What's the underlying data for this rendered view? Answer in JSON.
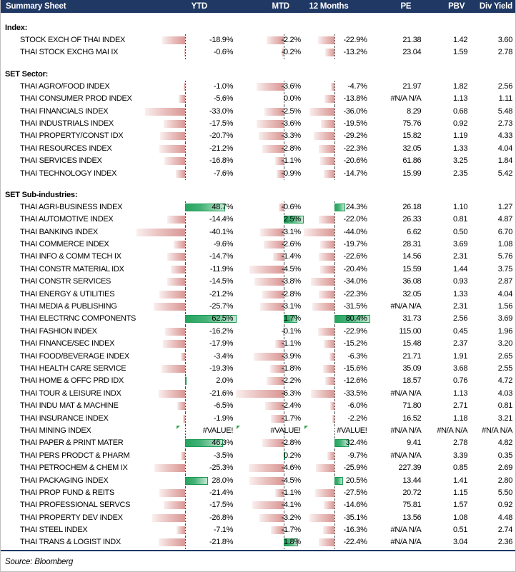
{
  "header": {
    "title": "Summary Sheet",
    "columns": [
      "YTD",
      "MTD",
      "12 Months",
      "PE",
      "PBV",
      "Div Yield"
    ]
  },
  "colors": {
    "header_bg": "#1F3864",
    "header_text": "#FFFFFF",
    "negative_bar": "#D99694",
    "positive_bar": "#25A45F",
    "positive_bar_border": "#1E9A54",
    "error_flag": "#3FA34D",
    "sheet_border": "#BFBFBF"
  },
  "bar_columns": {
    "ytd": {
      "neg_max": 40.1,
      "pos_max": 62.5,
      "axis_frac": 0.49
    },
    "mtd": {
      "neg_max": 6.3,
      "pos_max": 2.5,
      "axis_frac": 0.7
    },
    "m12": {
      "neg_max": 44.0,
      "pos_max": 80.4,
      "axis_frac": 0.46
    }
  },
  "sections": [
    {
      "title": "Index:",
      "rows": [
        {
          "label": "STOCK EXCH OF THAI INDEX",
          "ytd": "-18.9%",
          "mtd": "-2.2%",
          "m12": "-22.9%",
          "pe": "21.38",
          "pbv": "1.42",
          "dy": "3.60"
        },
        {
          "label": "THAI STOCK EXCHG MAI IX",
          "ytd": "-0.6%",
          "mtd": "-0.2%",
          "m12": "-13.2%",
          "pe": "23.04",
          "pbv": "1.59",
          "dy": "2.78"
        }
      ]
    },
    {
      "title": "SET Sector:",
      "rows": [
        {
          "label": "THAI AGRO/FOOD INDEX",
          "ytd": "-1.0%",
          "mtd": "-3.6%",
          "m12": "-4.7%",
          "pe": "21.97",
          "pbv": "1.82",
          "dy": "2.56"
        },
        {
          "label": "THAI CONSUMER PROD INDEX",
          "ytd": "-5.6%",
          "mtd": "0.0%",
          "m12": "-13.8%",
          "pe": "#N/A N/A",
          "pbv": "1.13",
          "dy": "1.11"
        },
        {
          "label": "THAI FINANCIALS INDEX",
          "ytd": "-33.0%",
          "mtd": "-2.5%",
          "m12": "-36.0%",
          "pe": "8.29",
          "pbv": "0.68",
          "dy": "5.48"
        },
        {
          "label": "THAI INDUSTRIALS INDEX",
          "ytd": "-17.5%",
          "mtd": "-3.6%",
          "m12": "-19.5%",
          "pe": "75.76",
          "pbv": "0.92",
          "dy": "2.73"
        },
        {
          "label": "THAI PROPERTY/CONST IDX",
          "ytd": "-20.7%",
          "mtd": "-3.3%",
          "m12": "-29.2%",
          "pe": "15.82",
          "pbv": "1.19",
          "dy": "4.33"
        },
        {
          "label": "THAI RESOURCES INDEX",
          "ytd": "-21.2%",
          "mtd": "-2.8%",
          "m12": "-22.3%",
          "pe": "32.05",
          "pbv": "1.33",
          "dy": "4.04"
        },
        {
          "label": "THAI SERVICES INDEX",
          "ytd": "-16.8%",
          "mtd": "-1.1%",
          "m12": "-20.6%",
          "pe": "61.86",
          "pbv": "3.25",
          "dy": "1.84"
        },
        {
          "label": "THAI TECHNOLOGY INDEX",
          "ytd": "-7.6%",
          "mtd": "-0.9%",
          "m12": "-14.7%",
          "pe": "15.99",
          "pbv": "2.35",
          "dy": "5.42"
        }
      ]
    },
    {
      "title": "SET Sub-industries:",
      "rows": [
        {
          "label": "THAI AGRI-BUSINESS INDEX",
          "ytd": "48.7%",
          "mtd": "-0.6%",
          "m12": "24.3%",
          "pe": "26.18",
          "pbv": "1.10",
          "dy": "1.27"
        },
        {
          "label": "THAI AUTOMOTIVE INDEX",
          "ytd": "-14.4%",
          "mtd": "2.5%",
          "m12": "-22.0%",
          "pe": "26.33",
          "pbv": "0.81",
          "dy": "4.87"
        },
        {
          "label": "THAI BANKING INDEX",
          "ytd": "-40.1%",
          "mtd": "-3.1%",
          "m12": "-44.0%",
          "pe": "6.62",
          "pbv": "0.50",
          "dy": "6.70"
        },
        {
          "label": "THAI COMMERCE INDEX",
          "ytd": "-9.6%",
          "mtd": "-2.6%",
          "m12": "-19.7%",
          "pe": "28.31",
          "pbv": "3.69",
          "dy": "1.08"
        },
        {
          "label": "THAI INFO & COMM TECH IX",
          "ytd": "-14.7%",
          "mtd": "-1.4%",
          "m12": "-22.6%",
          "pe": "14.56",
          "pbv": "2.31",
          "dy": "5.76"
        },
        {
          "label": "THAI CONSTR MATERIAL IDX",
          "ytd": "-11.9%",
          "mtd": "-4.5%",
          "m12": "-20.4%",
          "pe": "15.59",
          "pbv": "1.44",
          "dy": "3.75"
        },
        {
          "label": "THAI CONSTR SERVICES",
          "ytd": "-14.5%",
          "mtd": "-3.8%",
          "m12": "-34.0%",
          "pe": "36.08",
          "pbv": "0.93",
          "dy": "2.87"
        },
        {
          "label": "THAI ENERGY & UTILITIES",
          "ytd": "-21.2%",
          "mtd": "-2.8%",
          "m12": "-22.3%",
          "pe": "32.05",
          "pbv": "1.33",
          "dy": "4.04"
        },
        {
          "label": "THAI MEDIA & PUBLISHING",
          "ytd": "-25.7%",
          "mtd": "-3.1%",
          "m12": "-31.5%",
          "pe": "#N/A N/A",
          "pbv": "2.31",
          "dy": "1.56"
        },
        {
          "label": "THAI ELECTRNC COMPONENTS",
          "ytd": "62.5%",
          "mtd": "1.7%",
          "m12": "80.4%",
          "pe": "31.73",
          "pbv": "2.56",
          "dy": "3.69"
        },
        {
          "label": "THAI FASHION INDEX",
          "ytd": "-16.2%",
          "mtd": "-0.1%",
          "m12": "-22.9%",
          "pe": "115.00",
          "pbv": "0.45",
          "dy": "1.96"
        },
        {
          "label": "THAI FINANCE/SEC INDEX",
          "ytd": "-17.9%",
          "mtd": "-1.1%",
          "m12": "-15.2%",
          "pe": "15.48",
          "pbv": "2.37",
          "dy": "3.20"
        },
        {
          "label": "THAI FOOD/BEVERAGE INDEX",
          "ytd": "-3.4%",
          "mtd": "-3.9%",
          "m12": "-6.3%",
          "pe": "21.71",
          "pbv": "1.91",
          "dy": "2.65"
        },
        {
          "label": "THAI HEALTH CARE SERVICE",
          "ytd": "-19.3%",
          "mtd": "-1.8%",
          "m12": "-15.6%",
          "pe": "35.09",
          "pbv": "3.68",
          "dy": "2.55"
        },
        {
          "label": "THAI HOME & OFFC PRD IDX",
          "ytd": "2.0%",
          "mtd": "-2.2%",
          "m12": "-12.6%",
          "pe": "18.57",
          "pbv": "0.76",
          "dy": "4.72"
        },
        {
          "label": "THAI TOUR & LEISURE INDX",
          "ytd": "-21.6%",
          "mtd": "-6.3%",
          "m12": "-33.5%",
          "pe": "#N/A N/A",
          "pbv": "1.13",
          "dy": "4.03"
        },
        {
          "label": "THAI INDU MAT & MACHINE",
          "ytd": "-6.5%",
          "mtd": "-2.4%",
          "m12": "-6.0%",
          "pe": "71.80",
          "pbv": "2.71",
          "dy": "0.81"
        },
        {
          "label": "THAI INSURANCE INDEX",
          "ytd": "-1.9%",
          "mtd": "-1.7%",
          "m12": "-2.2%",
          "pe": "16.52",
          "pbv": "1.18",
          "dy": "3.21"
        },
        {
          "label": "THAI MINING INDEX",
          "ytd": "#VALUE!",
          "mtd": "#VALUE!",
          "m12": "#VALUE!",
          "pe": "#N/A N/A",
          "pbv": "#N/A N/A",
          "dy": "#N/A N/A",
          "error_flags": true
        },
        {
          "label": "THAI PAPER & PRINT MATER",
          "ytd": "46.3%",
          "mtd": "-2.8%",
          "m12": "32.4%",
          "pe": "9.41",
          "pbv": "2.78",
          "dy": "4.82"
        },
        {
          "label": "THAI PERS PRODCT & PHARM",
          "ytd": "-3.5%",
          "mtd": "0.2%",
          "m12": "-9.7%",
          "pe": "#N/A N/A",
          "pbv": "3.39",
          "dy": "0.35"
        },
        {
          "label": "THAI PETROCHEM & CHEM IX",
          "ytd": "-25.3%",
          "mtd": "-4.6%",
          "m12": "-25.9%",
          "pe": "227.39",
          "pbv": "0.85",
          "dy": "2.69"
        },
        {
          "label": "THAI PACKAGING INDEX",
          "ytd": "28.0%",
          "mtd": "-4.5%",
          "m12": "20.5%",
          "pe": "13.44",
          "pbv": "1.41",
          "dy": "2.80"
        },
        {
          "label": "THAI PROP FUND & REITS",
          "ytd": "-21.4%",
          "mtd": "-1.1%",
          "m12": "-27.5%",
          "pe": "20.72",
          "pbv": "1.15",
          "dy": "5.50"
        },
        {
          "label": "THAI PROFESSIONAL SERVCS",
          "ytd": "-17.5%",
          "mtd": "-4.1%",
          "m12": "-14.6%",
          "pe": "75.81",
          "pbv": "1.57",
          "dy": "0.92"
        },
        {
          "label": "THAI PROPERTY DEV INDEX",
          "ytd": "-26.8%",
          "mtd": "-3.2%",
          "m12": "-35.1%",
          "pe": "13.56",
          "pbv": "1.08",
          "dy": "4.48"
        },
        {
          "label": "THAI STEEL INDEX",
          "ytd": "-7.1%",
          "mtd": "-1.7%",
          "m12": "-16.3%",
          "pe": "#N/A N/A",
          "pbv": "0.51",
          "dy": "2.74"
        },
        {
          "label": "THAI TRANS & LOGIST INDX",
          "ytd": "-21.8%",
          "mtd": "1.8%",
          "m12": "-22.4%",
          "pe": "#N/A N/A",
          "pbv": "3.04",
          "dy": "2.36"
        }
      ]
    }
  ],
  "footer": {
    "source": "Source: Bloomberg"
  }
}
